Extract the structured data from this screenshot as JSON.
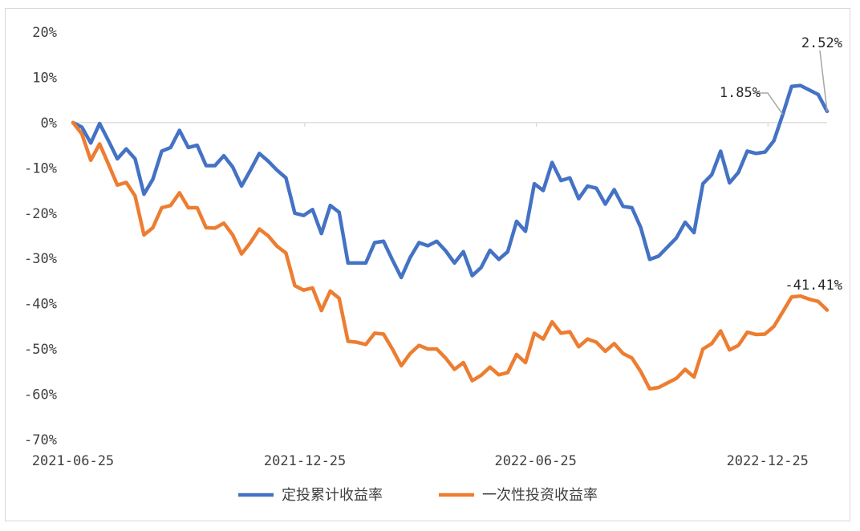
{
  "chart_data": {
    "type": "line",
    "title": "",
    "xlabel": "",
    "ylabel": "",
    "ylim": [
      -0.7,
      0.2
    ],
    "y_ticks": [
      0.2,
      0.1,
      0.0,
      -0.1,
      -0.2,
      -0.3,
      -0.4,
      -0.5,
      -0.6,
      -0.7
    ],
    "y_tick_labels": [
      "20%",
      "10%",
      "0%",
      "-10%",
      "-20%",
      "-30%",
      "-40%",
      "-50%",
      "-60%",
      "-70%"
    ],
    "x_tick_labels": [
      "2021-06-25",
      "2021-12-25",
      "2022-06-25",
      "2022-12-25"
    ],
    "x_start": "2021-06-25",
    "x_end": "2023-02-10",
    "legend": "bottom-center",
    "grid": false,
    "series": [
      {
        "name": "定投累计收益率",
        "color": "#4472C4",
        "values": [
          0.0,
          -0.01,
          -0.045,
          -0.002,
          -0.04,
          -0.08,
          -0.058,
          -0.08,
          -0.158,
          -0.125,
          -0.063,
          -0.055,
          -0.017,
          -0.055,
          -0.05,
          -0.095,
          -0.095,
          -0.073,
          -0.098,
          -0.14,
          -0.105,
          -0.068,
          -0.085,
          -0.105,
          -0.122,
          -0.2,
          -0.205,
          -0.192,
          -0.245,
          -0.183,
          -0.198,
          -0.31,
          -0.31,
          -0.31,
          -0.265,
          -0.262,
          -0.303,
          -0.342,
          -0.298,
          -0.265,
          -0.272,
          -0.262,
          -0.283,
          -0.31,
          -0.285,
          -0.338,
          -0.32,
          -0.282,
          -0.302,
          -0.285,
          -0.218,
          -0.24,
          -0.135,
          -0.15,
          -0.088,
          -0.128,
          -0.122,
          -0.168,
          -0.14,
          -0.145,
          -0.18,
          -0.148,
          -0.185,
          -0.188,
          -0.232,
          -0.302,
          -0.295,
          -0.275,
          -0.255,
          -0.22,
          -0.243,
          -0.135,
          -0.115,
          -0.063,
          -0.133,
          -0.11,
          -0.063,
          -0.068,
          -0.065,
          -0.04,
          0.018,
          0.08,
          0.082,
          0.072,
          0.062,
          0.025
        ],
        "end_label": "2.52%"
      },
      {
        "name": "一次性投资收益率",
        "color": "#ED7D31",
        "values": [
          0.0,
          -0.025,
          -0.083,
          -0.047,
          -0.092,
          -0.138,
          -0.132,
          -0.162,
          -0.248,
          -0.232,
          -0.188,
          -0.183,
          -0.155,
          -0.188,
          -0.188,
          -0.232,
          -0.233,
          -0.222,
          -0.248,
          -0.29,
          -0.265,
          -0.235,
          -0.25,
          -0.273,
          -0.288,
          -0.36,
          -0.37,
          -0.365,
          -0.415,
          -0.372,
          -0.388,
          -0.483,
          -0.485,
          -0.49,
          -0.465,
          -0.467,
          -0.5,
          -0.537,
          -0.51,
          -0.492,
          -0.5,
          -0.5,
          -0.52,
          -0.545,
          -0.53,
          -0.57,
          -0.558,
          -0.54,
          -0.557,
          -0.552,
          -0.512,
          -0.53,
          -0.465,
          -0.478,
          -0.44,
          -0.465,
          -0.462,
          -0.495,
          -0.478,
          -0.485,
          -0.505,
          -0.488,
          -0.51,
          -0.52,
          -0.55,
          -0.588,
          -0.585,
          -0.575,
          -0.565,
          -0.545,
          -0.562,
          -0.5,
          -0.488,
          -0.46,
          -0.502,
          -0.492,
          -0.463,
          -0.468,
          -0.467,
          -0.45,
          -0.418,
          -0.385,
          -0.383,
          -0.39,
          -0.395,
          -0.414
        ],
        "end_label": "-41.41%"
      }
    ],
    "annotations": [
      {
        "text": "1.85%",
        "series": 0,
        "point_index": 80
      },
      {
        "text": "2.52%",
        "series": 0,
        "point_index": 85
      },
      {
        "text": "-41.41%",
        "series": 1,
        "point_index": 85
      }
    ]
  }
}
